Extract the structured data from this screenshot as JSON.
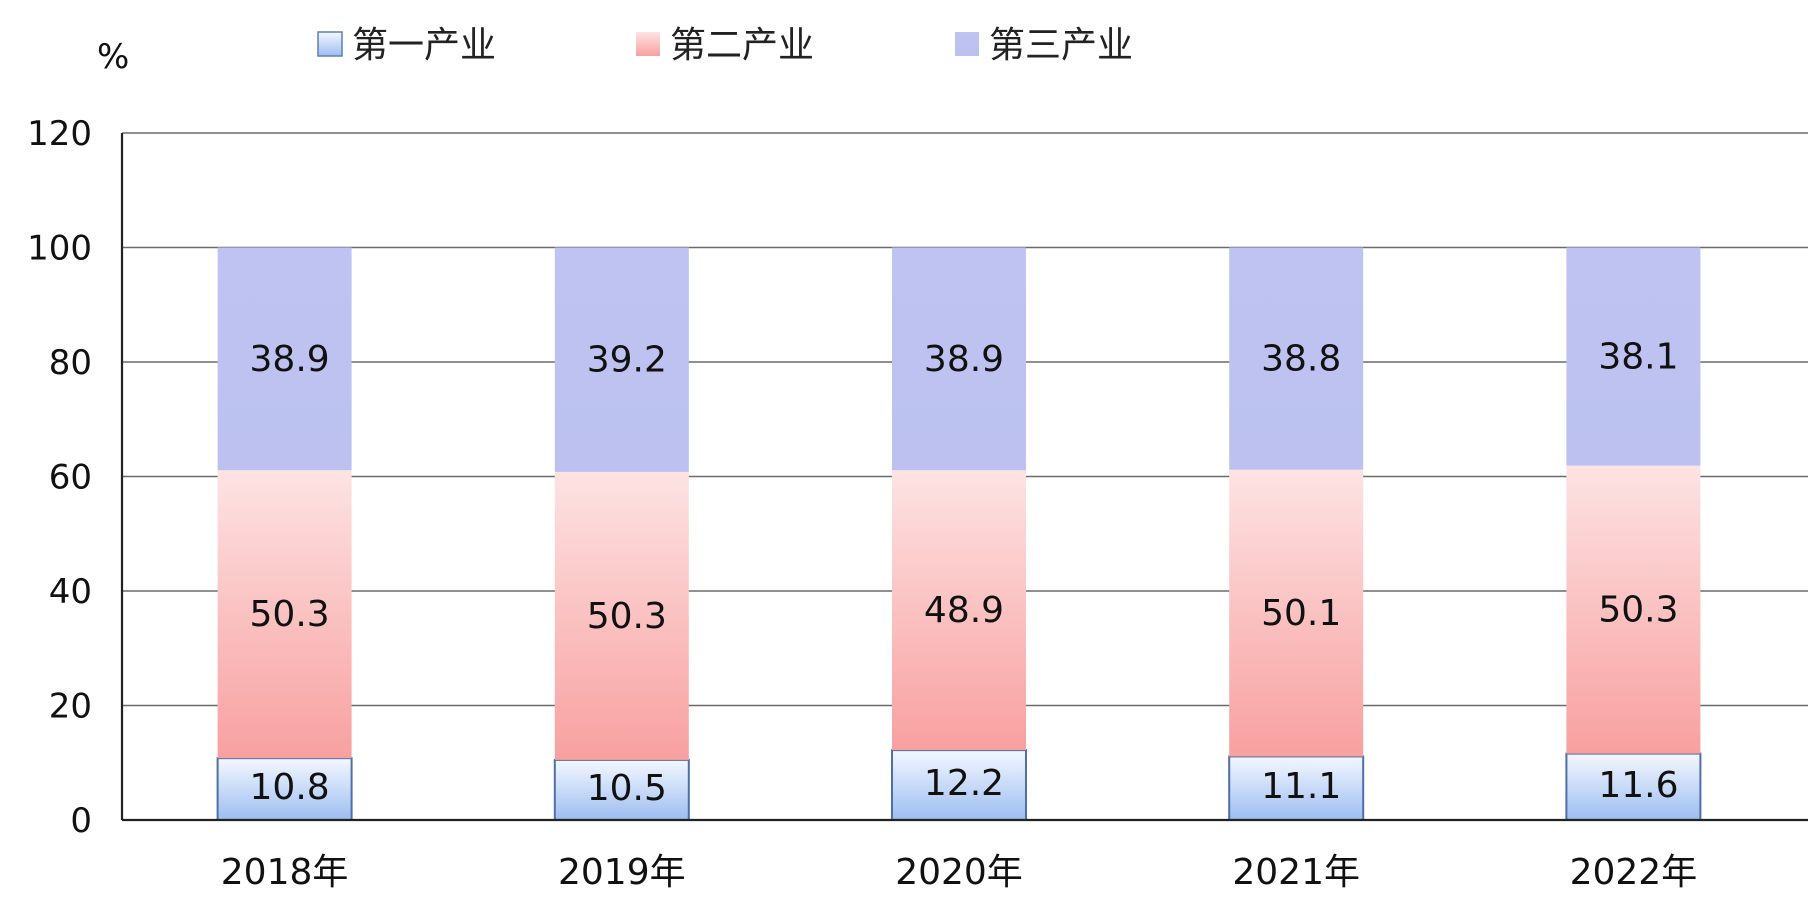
{
  "chart_data": {
    "type": "bar",
    "stacked": true,
    "unit_label": "%",
    "categories": [
      "2018年",
      "2019年",
      "2020年",
      "2021年",
      "2022年"
    ],
    "series": [
      {
        "name": "第一产业",
        "values": [
          10.8,
          10.5,
          12.2,
          11.1,
          11.6
        ],
        "color": "#a9c6ef"
      },
      {
        "name": "第二产业",
        "values": [
          50.3,
          50.3,
          48.9,
          50.1,
          50.3
        ],
        "color": "#f7a6a6"
      },
      {
        "name": "第三产业",
        "values": [
          38.9,
          39.2,
          38.9,
          38.8,
          38.1
        ],
        "color": "#bcc1f0"
      }
    ],
    "ylim": [
      0,
      120
    ],
    "yticks": [
      0,
      20,
      40,
      60,
      80,
      100,
      120
    ],
    "grid": true,
    "legend_position": "top"
  }
}
